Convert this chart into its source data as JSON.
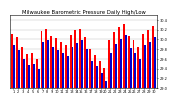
{
  "title": "Milwaukee Barometric Pressure Daily High/Low",
  "highs": [
    30.12,
    30.05,
    29.85,
    29.7,
    29.72,
    29.6,
    30.18,
    30.22,
    30.08,
    30.02,
    29.95,
    29.88,
    30.1,
    30.2,
    30.22,
    30.05,
    29.8,
    29.68,
    29.55,
    29.42,
    29.98,
    30.15,
    30.25,
    30.32,
    30.08,
    29.98,
    29.85,
    30.12,
    30.2,
    30.28
  ],
  "lows": [
    29.88,
    29.78,
    29.6,
    29.48,
    29.5,
    29.38,
    29.95,
    29.98,
    29.85,
    29.78,
    29.72,
    29.65,
    29.85,
    29.92,
    29.98,
    29.8,
    29.55,
    29.45,
    29.3,
    29.15,
    29.72,
    29.9,
    30.0,
    30.1,
    29.82,
    29.72,
    29.6,
    29.88,
    29.95,
    30.05
  ],
  "high_color": "#FF0000",
  "low_color": "#0000CC",
  "ylim_min": 29.0,
  "ylim_max": 30.5,
  "background_color": "#FFFFFF",
  "title_fontsize": 3.8,
  "tick_fontsize": 2.5,
  "bar_width": 0.4,
  "yticks": [
    29.0,
    29.2,
    29.4,
    29.6,
    29.8,
    30.0,
    30.2,
    30.4
  ],
  "ytick_labels": [
    "29.0",
    "29.2",
    "29.4",
    "29.6",
    "29.8",
    "30.0",
    "30.2",
    "30.4"
  ],
  "n_bars": 30,
  "xtick_step": 1
}
